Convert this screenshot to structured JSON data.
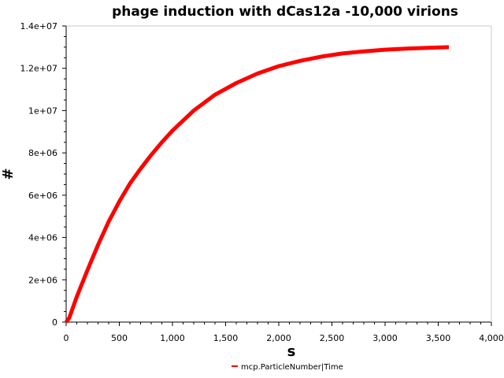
{
  "chart_data": {
    "type": "line",
    "title": "phage induction with dCas12a -10,000 virions",
    "xlabel": "s",
    "ylabel": "#",
    "xlim": [
      0,
      4000
    ],
    "ylim": [
      0,
      14000000
    ],
    "x_ticks": [
      0,
      500,
      1000,
      1500,
      2000,
      2500,
      3000,
      3500,
      4000
    ],
    "x_tick_labels": [
      "0",
      "500",
      "1,000",
      "1,500",
      "2,000",
      "2,500",
      "3,000",
      "3,500",
      "4,000"
    ],
    "y_ticks": [
      0,
      2000000,
      4000000,
      6000000,
      8000000,
      10000000,
      12000000,
      14000000
    ],
    "y_tick_labels": [
      "0",
      "2e+06",
      "4e+06",
      "6e+06",
      "8e+06",
      "1e+07",
      "1.2e+07",
      "1.4e+07"
    ],
    "grid": false,
    "legend_position": "bottom-center",
    "series": [
      {
        "name": "mcp.ParticleNumber|Time",
        "color": "#ff0000",
        "x": [
          0,
          30,
          50,
          100,
          200,
          300,
          400,
          500,
          600,
          700,
          800,
          900,
          1000,
          1200,
          1400,
          1600,
          1800,
          2000,
          2200,
          2400,
          2600,
          2800,
          3000,
          3200,
          3400,
          3600
        ],
        "y": [
          0,
          200000,
          500000,
          1200000,
          2450000,
          3650000,
          4750000,
          5700000,
          6550000,
          7250000,
          7900000,
          8500000,
          9050000,
          10000000,
          10750000,
          11300000,
          11750000,
          12100000,
          12350000,
          12550000,
          12700000,
          12800000,
          12880000,
          12930000,
          12970000,
          13000000
        ]
      }
    ]
  }
}
